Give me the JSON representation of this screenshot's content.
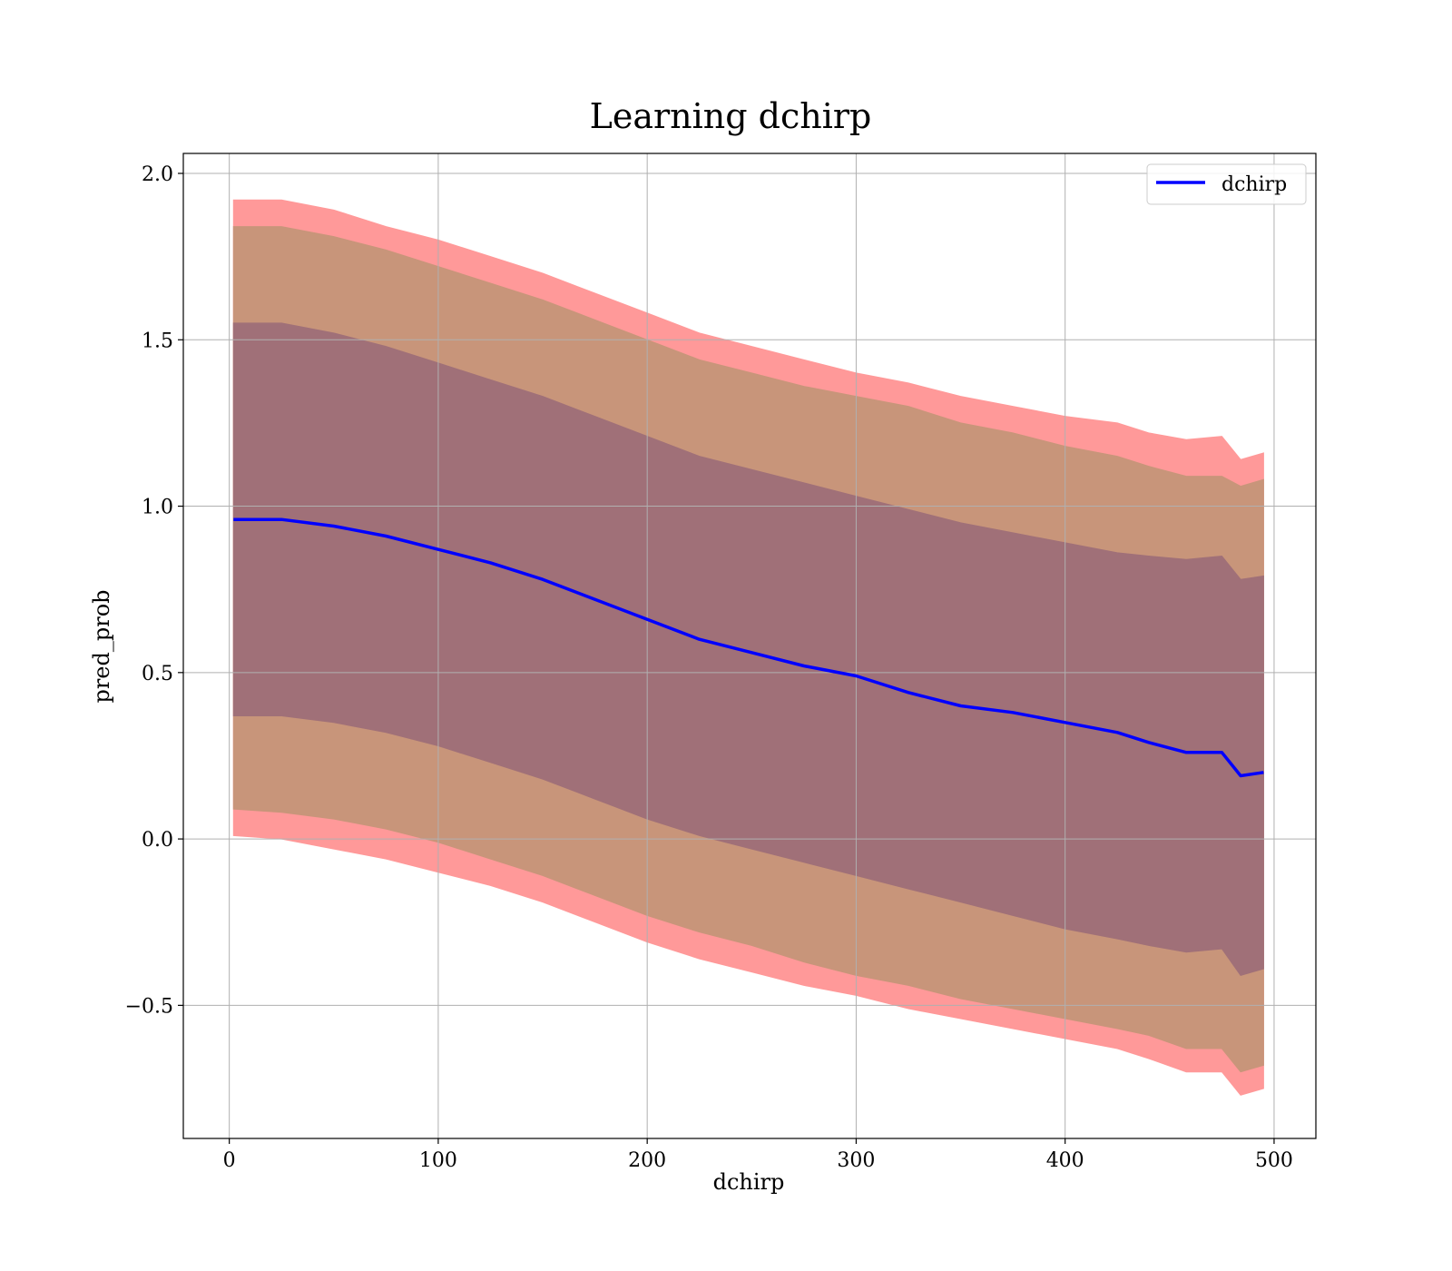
{
  "chart_data": {
    "type": "line",
    "title": "Learning dchirp",
    "xlabel": "dchirp",
    "ylabel": "pred_prob",
    "xlim": [
      -22,
      520
    ],
    "ylim": [
      -0.9,
      2.06
    ],
    "xticks": [
      0,
      100,
      200,
      300,
      400,
      500
    ],
    "yticks": [
      -0.5,
      0.0,
      0.5,
      1.0,
      1.5,
      2.0
    ],
    "xtick_labels": [
      "0",
      "100",
      "200",
      "300",
      "400",
      "500"
    ],
    "ytick_labels": [
      "−0.5",
      "0.0",
      "0.5",
      "1.0",
      "1.5",
      "2.0"
    ],
    "grid": true,
    "legend": {
      "position": "top-right",
      "entries": [
        "dchirp"
      ]
    },
    "colors": {
      "line": "#0000ff",
      "band_3sd": "#ff9999",
      "band_2sd": "#c8957a",
      "band_1sd": "#a07078",
      "grid": "#b0b0b0"
    },
    "x": [
      2,
      25,
      50,
      75,
      100,
      125,
      150,
      175,
      200,
      225,
      250,
      275,
      300,
      325,
      350,
      375,
      400,
      425,
      440,
      458,
      475,
      484,
      495
    ],
    "series": [
      {
        "name": "dchirp",
        "values": [
          0.96,
          0.96,
          0.94,
          0.91,
          0.87,
          0.83,
          0.78,
          0.72,
          0.66,
          0.6,
          0.56,
          0.52,
          0.49,
          0.44,
          0.4,
          0.38,
          0.35,
          0.32,
          0.29,
          0.26,
          0.26,
          0.19,
          0.2
        ]
      }
    ],
    "bands": [
      {
        "level": "3sd",
        "upper": [
          1.92,
          1.92,
          1.89,
          1.84,
          1.8,
          1.75,
          1.7,
          1.64,
          1.58,
          1.52,
          1.48,
          1.44,
          1.4,
          1.37,
          1.33,
          1.3,
          1.27,
          1.25,
          1.22,
          1.2,
          1.21,
          1.14,
          1.16
        ],
        "lower": [
          0.01,
          0.0,
          -0.03,
          -0.06,
          -0.1,
          -0.14,
          -0.19,
          -0.25,
          -0.31,
          -0.36,
          -0.4,
          -0.44,
          -0.47,
          -0.51,
          -0.54,
          -0.57,
          -0.6,
          -0.63,
          -0.66,
          -0.7,
          -0.7,
          -0.77,
          -0.75
        ]
      },
      {
        "level": "2sd",
        "upper": [
          1.84,
          1.84,
          1.81,
          1.77,
          1.72,
          1.67,
          1.62,
          1.56,
          1.5,
          1.44,
          1.4,
          1.36,
          1.33,
          1.3,
          1.25,
          1.22,
          1.18,
          1.15,
          1.12,
          1.09,
          1.09,
          1.06,
          1.08
        ],
        "lower": [
          0.09,
          0.08,
          0.06,
          0.03,
          -0.01,
          -0.06,
          -0.11,
          -0.17,
          -0.23,
          -0.28,
          -0.32,
          -0.37,
          -0.41,
          -0.44,
          -0.48,
          -0.51,
          -0.54,
          -0.57,
          -0.59,
          -0.63,
          -0.63,
          -0.7,
          -0.68
        ]
      },
      {
        "level": "1sd",
        "upper": [
          1.55,
          1.55,
          1.52,
          1.48,
          1.43,
          1.38,
          1.33,
          1.27,
          1.21,
          1.15,
          1.11,
          1.07,
          1.03,
          0.99,
          0.95,
          0.92,
          0.89,
          0.86,
          0.85,
          0.84,
          0.85,
          0.78,
          0.79
        ],
        "lower": [
          0.37,
          0.37,
          0.35,
          0.32,
          0.28,
          0.23,
          0.18,
          0.12,
          0.06,
          0.01,
          -0.03,
          -0.07,
          -0.11,
          -0.15,
          -0.19,
          -0.23,
          -0.27,
          -0.3,
          -0.32,
          -0.34,
          -0.33,
          -0.41,
          -0.39
        ]
      }
    ]
  }
}
